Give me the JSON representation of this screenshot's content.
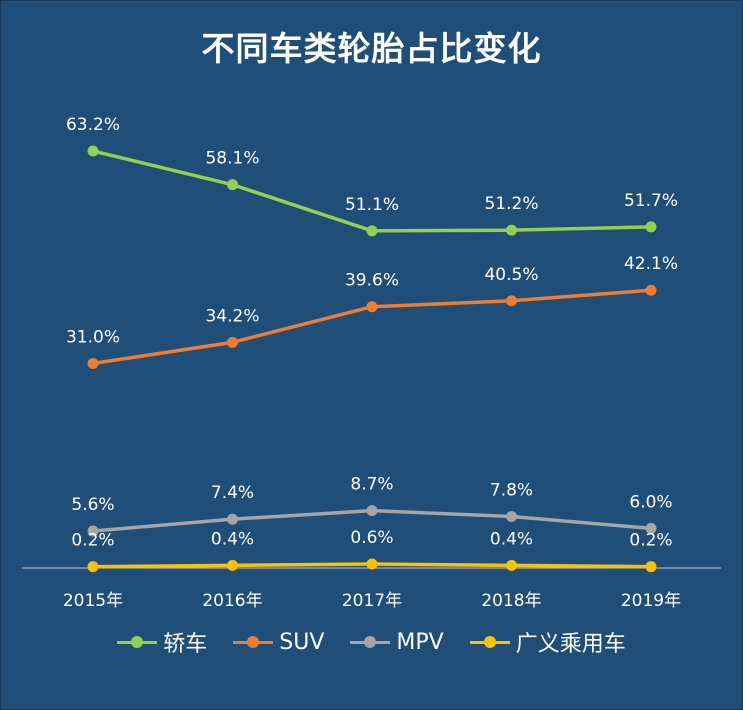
{
  "chart_data": {
    "type": "line",
    "title": "不同车类轮胎占比变化",
    "categories": [
      "2015年",
      "2016年",
      "2017年",
      "2018年",
      "2019年"
    ],
    "series": [
      {
        "name": "轿车",
        "values": [
          63.2,
          58.1,
          51.1,
          51.2,
          51.7
        ],
        "labels": [
          "63.2%",
          "58.1%",
          "51.1%",
          "51.2%",
          "51.7%"
        ],
        "color": "#92d050"
      },
      {
        "name": "SUV",
        "values": [
          31.0,
          34.2,
          39.6,
          40.5,
          42.1
        ],
        "labels": [
          "31.0%",
          "34.2%",
          "39.6%",
          "40.5%",
          "42.1%"
        ],
        "color": "#ed7d31"
      },
      {
        "name": "MPV",
        "values": [
          5.6,
          7.4,
          8.7,
          7.8,
          6.0
        ],
        "labels": [
          "5.6%",
          "7.4%",
          "8.7%",
          "7.8%",
          "6.0%"
        ],
        "color": "#a5a5a5"
      },
      {
        "name": "广义乘用车",
        "values": [
          0.2,
          0.4,
          0.6,
          0.4,
          0.2
        ],
        "labels": [
          "0.2%",
          "0.4%",
          "0.6%",
          "0.4%",
          "0.2%"
        ],
        "color": "#ffc000"
      }
    ],
    "legend_position": "bottom",
    "grid": false,
    "ylim": [
      0,
      63.2
    ],
    "unit": "%",
    "background_color": "#1f4e79",
    "text_color": "#ffffff"
  }
}
